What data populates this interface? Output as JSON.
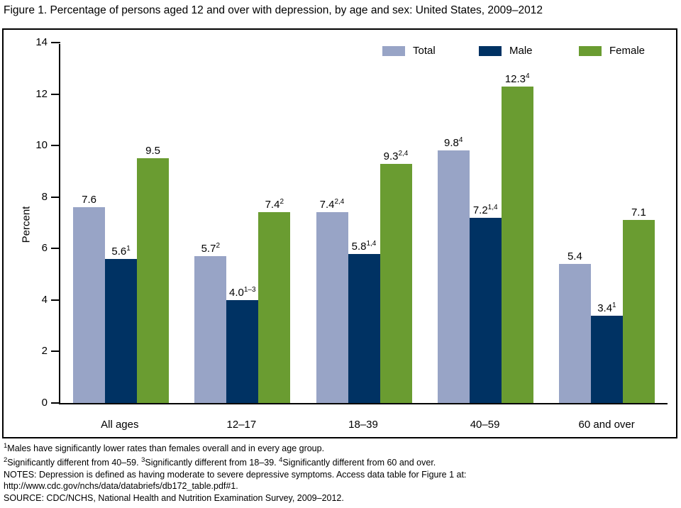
{
  "title": "Figure 1. Percentage of persons aged 12 and over with depression, by age and sex: United States, 2009–2012",
  "colors": {
    "total": "#98A4C6",
    "male": "#003263",
    "female": "#6A9C31",
    "axis": "#000000"
  },
  "chart_data": {
    "type": "bar",
    "title": "Figure 1. Percentage of persons aged 12 and over with depression, by age and sex: United States, 2009–2012",
    "xlabel": "",
    "ylabel": "Percent",
    "ylim": [
      0,
      14
    ],
    "yticks": [
      0,
      2,
      4,
      6,
      8,
      10,
      12,
      14
    ],
    "grid": false,
    "legend_position": "top-right-inside",
    "categories": [
      "All ages",
      "12–17",
      "18–39",
      "40–59",
      "60 and over"
    ],
    "series": [
      {
        "name": "Total",
        "color": "#98A4C6",
        "values": [
          7.6,
          5.7,
          7.4,
          9.8,
          5.4
        ],
        "labels": [
          "7.6",
          "5.7",
          "7.4",
          "9.8",
          "5.4"
        ],
        "label_sups": [
          "",
          "2",
          "2,4",
          "4",
          ""
        ]
      },
      {
        "name": "Male",
        "color": "#003263",
        "values": [
          5.6,
          4.0,
          5.8,
          7.2,
          3.4
        ],
        "labels": [
          "5.6",
          "4.0",
          "5.8",
          "7.2",
          "3.4"
        ],
        "label_sups": [
          "1",
          "1–3",
          "1,4",
          "1,4",
          "1"
        ]
      },
      {
        "name": "Female",
        "color": "#6A9C31",
        "values": [
          9.5,
          7.4,
          9.3,
          12.3,
          7.1
        ],
        "labels": [
          "9.5",
          "7.4",
          "9.3",
          "12.3",
          "7.1"
        ],
        "label_sups": [
          "",
          "2",
          "2,4",
          "4",
          ""
        ]
      }
    ]
  },
  "legend_x_positions": [
    534,
    670,
    811
  ],
  "footnotes": [
    [
      {
        "sup": "1"
      },
      {
        "text": "Males have significantly lower rates than females overall and in every age group."
      }
    ],
    [
      {
        "sup": "2"
      },
      {
        "text": "Significantly different from 40–59. "
      },
      {
        "sup": "3"
      },
      {
        "text": "Significantly different from 18–39. "
      },
      {
        "sup": "4"
      },
      {
        "text": "Significantly different from 60 and over."
      }
    ],
    [
      {
        "text": "NOTES: Depression is defined as having moderate to severe depressive symptoms. Access data table for Figure 1 at:"
      }
    ],
    [
      {
        "text": "http://www.cdc.gov/nchs/data/databriefs/db172_table.pdf#1."
      }
    ],
    [
      {
        "text": "SOURCE: CDC/NCHS, National Health and Nutrition Examination Survey, 2009–2012."
      }
    ]
  ]
}
